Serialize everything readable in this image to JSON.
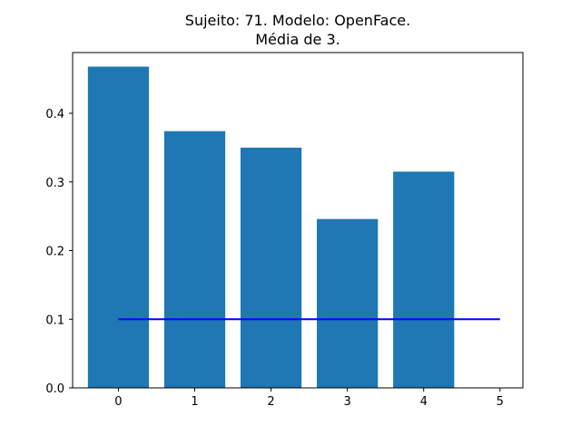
{
  "chart_data": {
    "type": "bar",
    "title": "Sujeito: 71. Modelo: OpenFace.",
    "subtitle": "Média de 3.",
    "xlabel": "",
    "ylabel": "",
    "categories": [
      0,
      1,
      2,
      3,
      4
    ],
    "values": [
      0.468,
      0.374,
      0.35,
      0.246,
      0.315
    ],
    "bar_color": "#1f77b4",
    "reference_line": {
      "y": 0.1,
      "x_start": 0,
      "x_end": 5,
      "color": "#0000ff"
    },
    "xlim": [
      -0.6,
      5.3
    ],
    "ylim": [
      0,
      0.4885
    ],
    "x_ticks": [
      0,
      1,
      2,
      3,
      4,
      5
    ],
    "x_tick_labels": [
      "0",
      "1",
      "2",
      "3",
      "4",
      "5"
    ],
    "y_ticks": [
      0.0,
      0.1,
      0.2,
      0.3,
      0.4
    ],
    "y_tick_labels": [
      "0.0",
      "0.1",
      "0.2",
      "0.3",
      "0.4"
    ],
    "grid": false,
    "legend": false
  }
}
